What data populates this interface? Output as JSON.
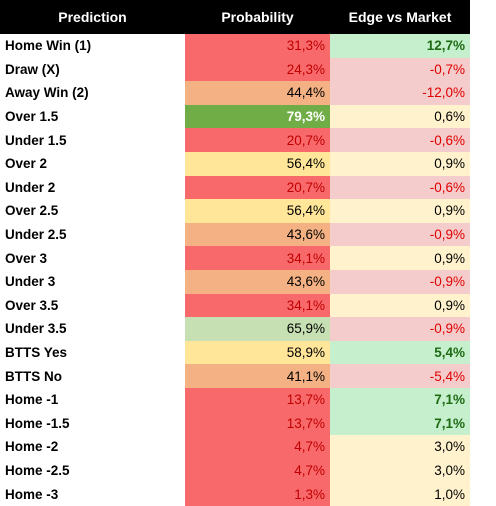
{
  "table": {
    "header": [
      "Prediction",
      "Probability",
      "Edge vs Market"
    ],
    "rows": [
      {
        "label": "Home Win (1)",
        "prob": {
          "text": "31,3%",
          "fill": "#f8696b",
          "color": "#c00000"
        },
        "edge": {
          "text": "12,7%",
          "fill": "#c6efce",
          "color": "#1e6b14",
          "bold": true
        }
      },
      {
        "label": "Draw (X)",
        "prob": {
          "text": "24,3%",
          "fill": "#f8696b",
          "color": "#c00000"
        },
        "edge": {
          "text": "-0,7%",
          "fill": "#f4cccc",
          "color": "#e00000",
          "bold": false
        }
      },
      {
        "label": "Away Win (2)",
        "prob": {
          "text": "44,4%",
          "fill": "#f4b183",
          "color": "#000000"
        },
        "edge": {
          "text": "-12,0%",
          "fill": "#f4cccc",
          "color": "#e00000",
          "bold": false
        }
      },
      {
        "label": "Over 1.5",
        "prob": {
          "text": "79,3%",
          "fill": "#70ad47",
          "color": "#ffffff",
          "bold": true
        },
        "edge": {
          "text": "0,6%",
          "fill": "#fff2cc",
          "color": "#000000",
          "bold": false
        }
      },
      {
        "label": "Under 1.5",
        "prob": {
          "text": "20,7%",
          "fill": "#f8696b",
          "color": "#c00000"
        },
        "edge": {
          "text": "-0,6%",
          "fill": "#f4cccc",
          "color": "#e00000",
          "bold": false
        }
      },
      {
        "label": "Over 2",
        "prob": {
          "text": "56,4%",
          "fill": "#ffe699",
          "color": "#000000"
        },
        "edge": {
          "text": "0,9%",
          "fill": "#fff2cc",
          "color": "#000000",
          "bold": false
        }
      },
      {
        "label": "Under 2",
        "prob": {
          "text": "20,7%",
          "fill": "#f8696b",
          "color": "#c00000"
        },
        "edge": {
          "text": "-0,6%",
          "fill": "#f4cccc",
          "color": "#e00000",
          "bold": false
        }
      },
      {
        "label": "Over 2.5",
        "prob": {
          "text": "56,4%",
          "fill": "#ffe699",
          "color": "#000000"
        },
        "edge": {
          "text": "0,9%",
          "fill": "#fff2cc",
          "color": "#000000",
          "bold": false
        }
      },
      {
        "label": "Under 2.5",
        "prob": {
          "text": "43,6%",
          "fill": "#f4b183",
          "color": "#000000"
        },
        "edge": {
          "text": "-0,9%",
          "fill": "#f4cccc",
          "color": "#e00000",
          "bold": false
        }
      },
      {
        "label": "Over 3",
        "prob": {
          "text": "34,1%",
          "fill": "#f8696b",
          "color": "#c00000"
        },
        "edge": {
          "text": "0,9%",
          "fill": "#fff2cc",
          "color": "#000000",
          "bold": false
        }
      },
      {
        "label": "Under 3",
        "prob": {
          "text": "43,6%",
          "fill": "#f4b183",
          "color": "#000000"
        },
        "edge": {
          "text": "-0,9%",
          "fill": "#f4cccc",
          "color": "#e00000",
          "bold": false
        }
      },
      {
        "label": "Over 3.5",
        "prob": {
          "text": "34,1%",
          "fill": "#f8696b",
          "color": "#c00000"
        },
        "edge": {
          "text": "0,9%",
          "fill": "#fff2cc",
          "color": "#000000",
          "bold": false
        }
      },
      {
        "label": "Under 3.5",
        "prob": {
          "text": "65,9%",
          "fill": "#c6e0b4",
          "color": "#000000"
        },
        "edge": {
          "text": "-0,9%",
          "fill": "#f4cccc",
          "color": "#e00000",
          "bold": false
        }
      },
      {
        "label": "BTTS Yes",
        "prob": {
          "text": "58,9%",
          "fill": "#ffe699",
          "color": "#000000"
        },
        "edge": {
          "text": "5,4%",
          "fill": "#c6efce",
          "color": "#1e6b14",
          "bold": true
        }
      },
      {
        "label": "BTTS No",
        "prob": {
          "text": "41,1%",
          "fill": "#f4b183",
          "color": "#000000"
        },
        "edge": {
          "text": "-5,4%",
          "fill": "#f4cccc",
          "color": "#e00000",
          "bold": false
        }
      },
      {
        "label": "Home -1",
        "prob": {
          "text": "13,7%",
          "fill": "#f8696b",
          "color": "#c00000"
        },
        "edge": {
          "text": "7,1%",
          "fill": "#c6efce",
          "color": "#1e6b14",
          "bold": true
        }
      },
      {
        "label": "Home -1.5",
        "prob": {
          "text": "13,7%",
          "fill": "#f8696b",
          "color": "#c00000"
        },
        "edge": {
          "text": "7,1%",
          "fill": "#c6efce",
          "color": "#1e6b14",
          "bold": true
        }
      },
      {
        "label": "Home -2",
        "prob": {
          "text": "4,7%",
          "fill": "#f8696b",
          "color": "#c00000"
        },
        "edge": {
          "text": "3,0%",
          "fill": "#fff2cc",
          "color": "#000000",
          "bold": false
        }
      },
      {
        "label": "Home -2.5",
        "prob": {
          "text": "4,7%",
          "fill": "#f8696b",
          "color": "#c00000"
        },
        "edge": {
          "text": "3,0%",
          "fill": "#fff2cc",
          "color": "#000000",
          "bold": false
        }
      },
      {
        "label": "Home -3",
        "prob": {
          "text": "1,3%",
          "fill": "#f8696b",
          "color": "#c00000"
        },
        "edge": {
          "text": "1,0%",
          "fill": "#fff2cc",
          "color": "#000000",
          "bold": false
        }
      }
    ]
  }
}
